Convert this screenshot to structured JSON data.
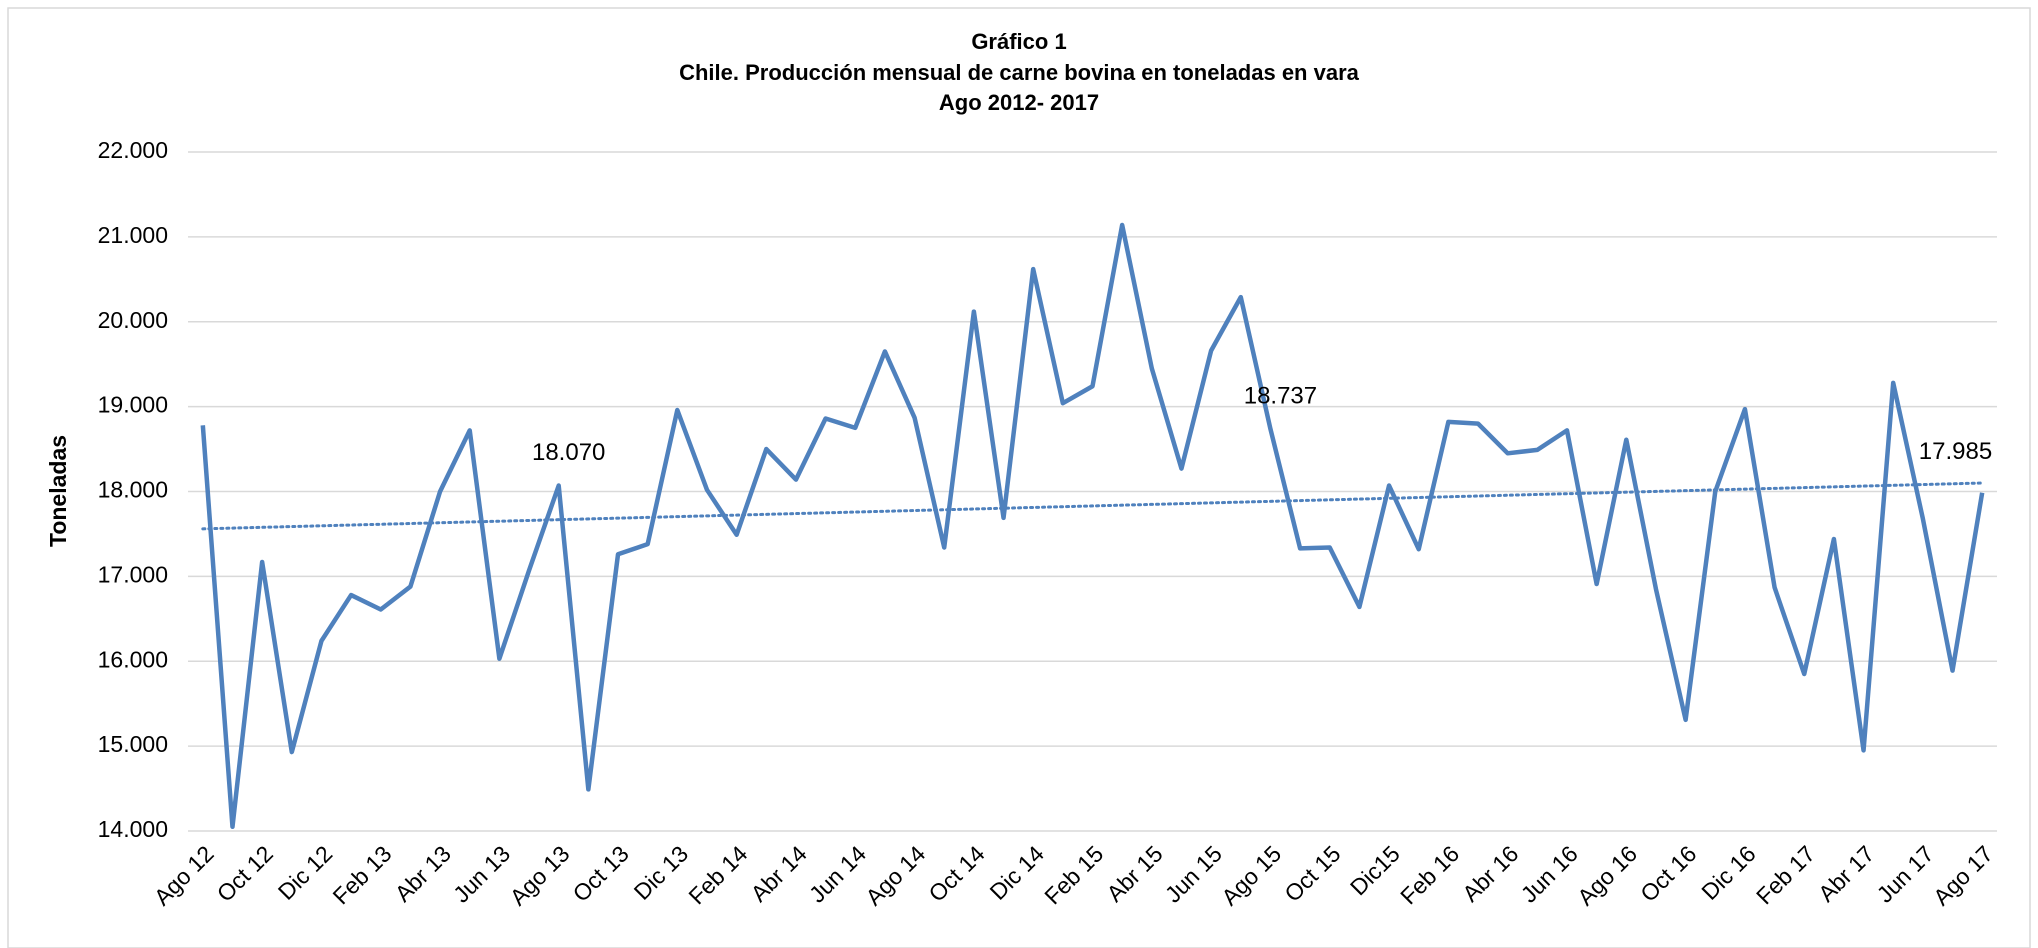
{
  "chart_data": {
    "type": "line",
    "title": [
      "Gráfico 1",
      "Chile. Producción mensual de carne bovina en toneladas en vara",
      "Ago 2012-  2017"
    ],
    "y_label": "Toneladas",
    "categories": [
      "Ago  12",
      null,
      "Oct  12",
      null,
      "Dic  12",
      null,
      "Feb 13",
      null,
      "Abr 13",
      null,
      "Jun 13",
      null,
      "Ago 13",
      null,
      "Oct 13",
      null,
      "Dic 13",
      null,
      "Feb 14",
      null,
      "Abr 14",
      null,
      "Jun 14",
      null,
      "Ago  14",
      null,
      "Oct 14",
      null,
      "Dic 14",
      null,
      "Feb 15",
      null,
      "Abr 15",
      null,
      "Jun 15",
      null,
      "Ago 15",
      null,
      "Oct 15",
      null,
      "Dic15",
      null,
      "Feb 16",
      null,
      "Abr 16",
      null,
      "Jun 16",
      null,
      "Ago 16",
      null,
      "Oct 16",
      null,
      "Dic 16",
      null,
      "Feb 17",
      null,
      "Abr  17",
      null,
      "Jun 17",
      null,
      "Ago 17"
    ],
    "values": [
      18780,
      14050,
      17170,
      14930,
      16240,
      16780,
      16610,
      16880,
      18000,
      18720,
      16030,
      17070,
      18070,
      14490,
      17260,
      17380,
      18960,
      18020,
      17490,
      18500,
      18140,
      18860,
      18750,
      19650,
      18870,
      17340,
      20120,
      17690,
      20620,
      19040,
      19240,
      21140,
      19450,
      18270,
      19660,
      20290,
      18737,
      17330,
      17340,
      16640,
      18070,
      17320,
      18820,
      18800,
      18450,
      18490,
      18720,
      16910,
      18610,
      16850,
      15310,
      18000,
      18970,
      16870,
      15850,
      17440,
      14950,
      19280,
      17680,
      15890,
      17985
    ],
    "value_labels": [
      null,
      null,
      null,
      null,
      null,
      null,
      null,
      null,
      null,
      null,
      null,
      null,
      "18.070",
      null,
      null,
      null,
      null,
      null,
      null,
      null,
      null,
      null,
      null,
      null,
      null,
      null,
      null,
      null,
      null,
      null,
      null,
      null,
      null,
      null,
      null,
      null,
      "18.737",
      null,
      null,
      null,
      null,
      null,
      null,
      null,
      null,
      null,
      null,
      null,
      null,
      null,
      null,
      null,
      null,
      null,
      null,
      null,
      null,
      null,
      null,
      null,
      "17.985"
    ],
    "color": "#4f81bd",
    "trendline": {
      "values": [
        17560,
        18100
      ],
      "color": "#4f81bd"
    },
    "ylim": [
      14000,
      22000
    ],
    "yticks": [
      {
        "value": 14000,
        "label": "14.000"
      },
      {
        "value": 15000,
        "label": "15.000"
      },
      {
        "value": 16000,
        "label": "16.000"
      },
      {
        "value": 17000,
        "label": "17.000"
      },
      {
        "value": 18000,
        "label": "18.000"
      },
      {
        "value": 19000,
        "label": "19.000"
      },
      {
        "value": 20000,
        "label": "20.000"
      },
      {
        "value": 21000,
        "label": "21.000"
      },
      {
        "value": 22000,
        "label": "22.000"
      }
    ],
    "grid": true
  }
}
